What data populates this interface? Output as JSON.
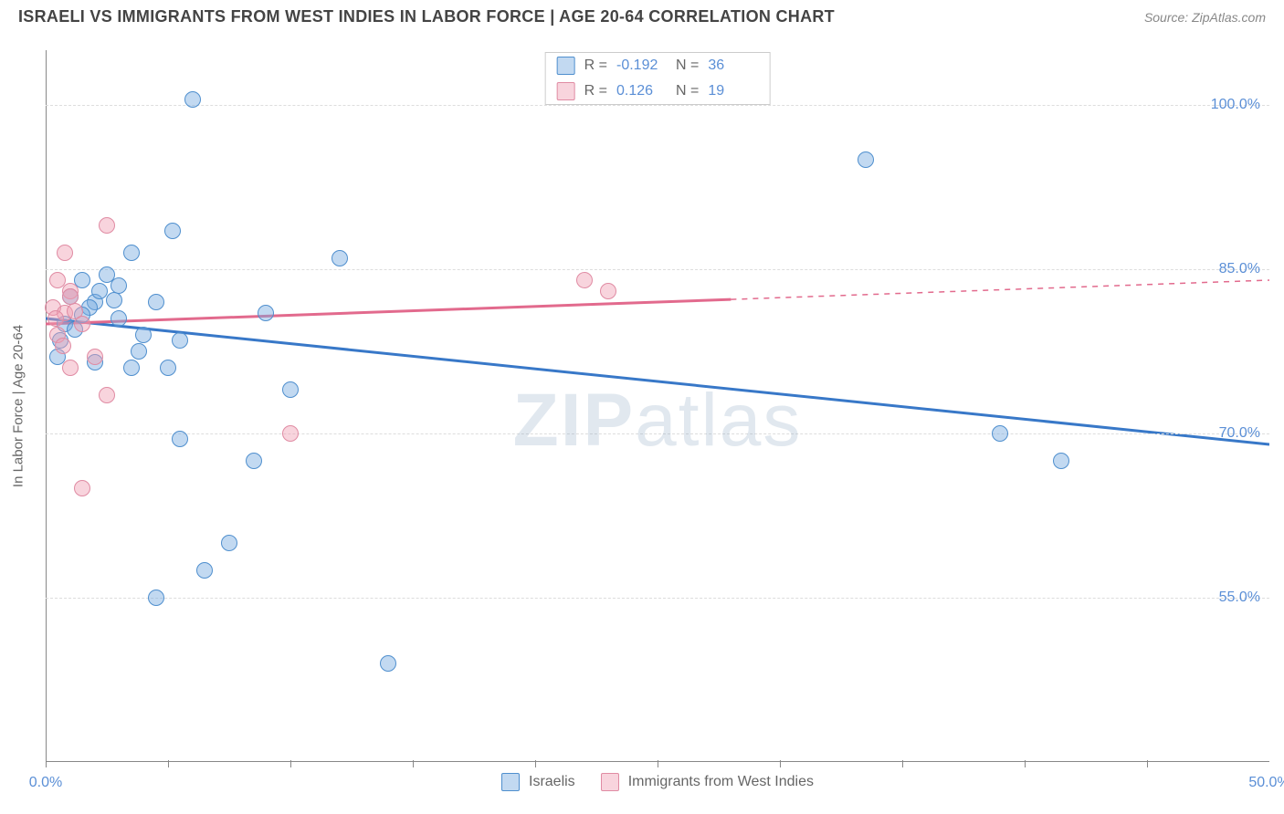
{
  "title": "ISRAELI VS IMMIGRANTS FROM WEST INDIES IN LABOR FORCE | AGE 20-64 CORRELATION CHART",
  "source_prefix": "Source: ",
  "source": "ZipAtlas.com",
  "y_axis_label": "In Labor Force | Age 20-64",
  "watermark_part1": "ZIP",
  "watermark_part2": "atlas",
  "chart": {
    "type": "scatter",
    "xlim": [
      0,
      50
    ],
    "ylim": [
      40,
      105
    ],
    "x_ticks": [
      0,
      5,
      10,
      15,
      20,
      25,
      30,
      35,
      40,
      45
    ],
    "y_ticks": [
      55,
      70,
      85,
      100
    ],
    "y_tick_labels": [
      "55.0%",
      "70.0%",
      "85.0%",
      "100.0%"
    ],
    "x_tick_labels": {
      "0": "0.0%",
      "50": "50.0%"
    },
    "background_color": "#ffffff",
    "grid_color": "#dddddd",
    "axis_color": "#888888",
    "tick_label_color": "#5b8fd6",
    "point_radius": 9,
    "point_border_width": 1.5,
    "series": [
      {
        "name": "israelis",
        "label": "Israelis",
        "fill": "rgba(120,170,225,0.45)",
        "stroke": "#4f8fce",
        "line_color": "#3878c8",
        "line_width": 3,
        "r_label": "R = ",
        "r_value": "-0.192",
        "n_label": "N = ",
        "n_value": "36",
        "trend": {
          "x1": 0,
          "y1": 80.5,
          "x2": 50,
          "y2": 69.0,
          "solid_to_x": 50
        },
        "points": [
          {
            "x": 6.0,
            "y": 100.5
          },
          {
            "x": 33.5,
            "y": 95.0
          },
          {
            "x": 5.2,
            "y": 88.5
          },
          {
            "x": 3.5,
            "y": 86.5
          },
          {
            "x": 1.5,
            "y": 84.0
          },
          {
            "x": 2.5,
            "y": 84.5
          },
          {
            "x": 3.0,
            "y": 83.5
          },
          {
            "x": 12.0,
            "y": 86.0
          },
          {
            "x": 1.0,
            "y": 82.5
          },
          {
            "x": 2.0,
            "y": 82.0
          },
          {
            "x": 2.8,
            "y": 82.2
          },
          {
            "x": 9.0,
            "y": 81.0
          },
          {
            "x": 0.8,
            "y": 80.0
          },
          {
            "x": 1.2,
            "y": 79.5
          },
          {
            "x": 3.0,
            "y": 80.5
          },
          {
            "x": 4.0,
            "y": 79.0
          },
          {
            "x": 5.5,
            "y": 78.5
          },
          {
            "x": 0.5,
            "y": 77.0
          },
          {
            "x": 2.0,
            "y": 76.5
          },
          {
            "x": 3.5,
            "y": 76.0
          },
          {
            "x": 5.0,
            "y": 76.0
          },
          {
            "x": 10.0,
            "y": 74.0
          },
          {
            "x": 5.5,
            "y": 69.5
          },
          {
            "x": 8.5,
            "y": 67.5
          },
          {
            "x": 39.0,
            "y": 70.0
          },
          {
            "x": 41.5,
            "y": 67.5
          },
          {
            "x": 7.5,
            "y": 60.0
          },
          {
            "x": 4.5,
            "y": 55.0
          },
          {
            "x": 6.5,
            "y": 57.5
          },
          {
            "x": 14.0,
            "y": 49.0
          },
          {
            "x": 1.8,
            "y": 81.5
          },
          {
            "x": 2.2,
            "y": 83.0
          },
          {
            "x": 3.8,
            "y": 77.5
          },
          {
            "x": 0.6,
            "y": 78.5
          },
          {
            "x": 1.5,
            "y": 80.8
          },
          {
            "x": 4.5,
            "y": 82.0
          }
        ]
      },
      {
        "name": "immigrants",
        "label": "Immigrants from West Indies",
        "fill": "rgba(240,160,180,0.45)",
        "stroke": "#e08ba3",
        "line_color": "#e26a8d",
        "line_width": 3,
        "r_label": "R = ",
        "r_value": "0.126",
        "n_label": "N = ",
        "n_value": "19",
        "trend": {
          "x1": 0,
          "y1": 80.0,
          "x2": 50,
          "y2": 84.0,
          "solid_to_x": 28
        },
        "points": [
          {
            "x": 2.5,
            "y": 89.0
          },
          {
            "x": 0.8,
            "y": 86.5
          },
          {
            "x": 0.5,
            "y": 84.0
          },
          {
            "x": 1.0,
            "y": 83.0
          },
          {
            "x": 0.3,
            "y": 81.5
          },
          {
            "x": 0.8,
            "y": 81.0
          },
          {
            "x": 1.2,
            "y": 81.2
          },
          {
            "x": 1.5,
            "y": 80.0
          },
          {
            "x": 0.5,
            "y": 79.0
          },
          {
            "x": 0.7,
            "y": 78.0
          },
          {
            "x": 2.0,
            "y": 77.0
          },
          {
            "x": 1.0,
            "y": 76.0
          },
          {
            "x": 2.5,
            "y": 73.5
          },
          {
            "x": 1.5,
            "y": 65.0
          },
          {
            "x": 10.0,
            "y": 70.0
          },
          {
            "x": 22.0,
            "y": 84.0
          },
          {
            "x": 23.0,
            "y": 83.0
          },
          {
            "x": 0.4,
            "y": 80.5
          },
          {
            "x": 1.0,
            "y": 82.5
          }
        ]
      }
    ]
  },
  "legend": {
    "israelis": "Israelis",
    "immigrants": "Immigrants from West Indies"
  }
}
